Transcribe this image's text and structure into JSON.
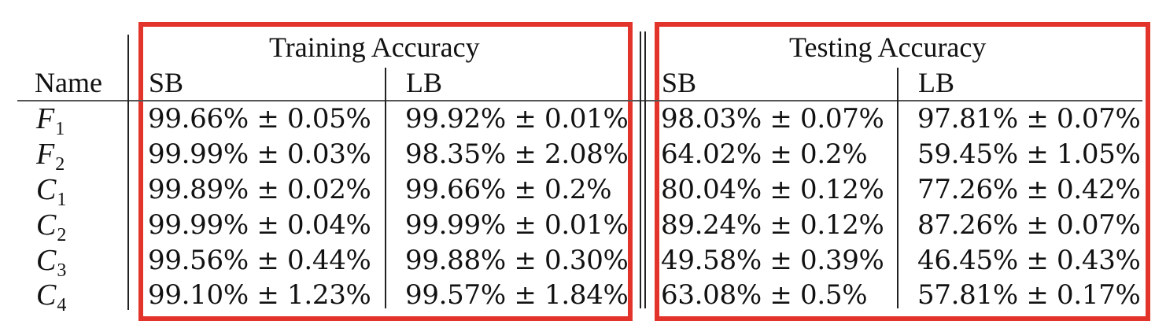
{
  "table": {
    "group_headers": {
      "training": "Training Accuracy",
      "testing": "Testing Accuracy"
    },
    "name_header": "Name",
    "sub_headers": {
      "train_sb": "SB",
      "train_lb": "LB",
      "test_sb": "SB",
      "test_lb": "LB"
    },
    "rows": [
      {
        "name": "F",
        "sub": "1",
        "train_sb": "99.66% ± 0.05%",
        "train_lb": "99.92% ± 0.01%",
        "test_sb": "98.03% ± 0.07%",
        "test_lb": "97.81% ± 0.07%"
      },
      {
        "name": "F",
        "sub": "2",
        "train_sb": "99.99% ± 0.03%",
        "train_lb": "98.35% ± 2.08%",
        "test_sb": "64.02% ± 0.2%",
        "test_lb": "59.45% ± 1.05%"
      },
      {
        "name": "C",
        "sub": "1",
        "train_sb": "99.89% ± 0.02%",
        "train_lb": "99.66% ± 0.2%",
        "test_sb": "80.04% ± 0.12%",
        "test_lb": "77.26% ± 0.42%"
      },
      {
        "name": "C",
        "sub": "2",
        "train_sb": "99.99% ± 0.04%",
        "train_lb": "99.99% ± 0.01%",
        "test_sb": "89.24% ± 0.12%",
        "test_lb": "87.26% ± 0.07%"
      },
      {
        "name": "C",
        "sub": "3",
        "train_sb": "99.56% ± 0.44%",
        "train_lb": "99.88% ± 0.30%",
        "test_sb": "49.58% ± 0.39%",
        "test_lb": "46.45% ± 0.43%"
      },
      {
        "name": "C",
        "sub": "4",
        "train_sb": "99.10% ± 1.23%",
        "train_lb": "99.57% ± 1.84%",
        "test_sb": "63.08% ± 0.5%",
        "test_lb": "57.81% ± 0.17%"
      }
    ]
  },
  "colors": {
    "highlight_box": "#e3342b",
    "rules": "#555555",
    "text": "#111111"
  }
}
